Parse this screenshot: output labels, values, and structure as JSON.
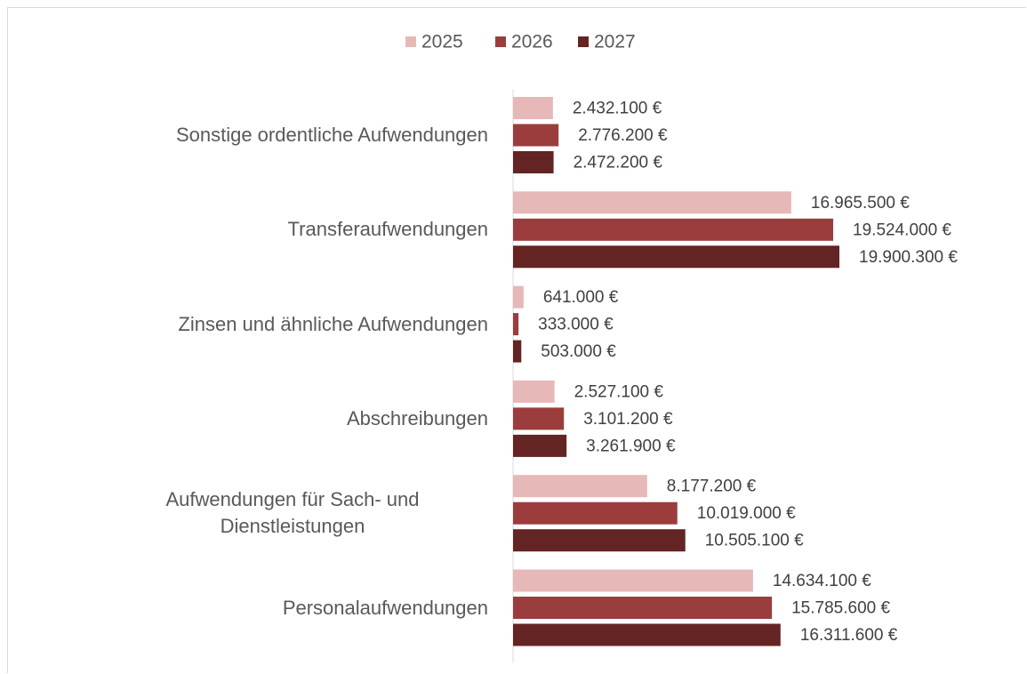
{
  "chart_data": {
    "type": "bar",
    "orientation": "horizontal",
    "categories": [
      "Sonstige ordentliche Aufwendungen",
      "Transferaufwendungen",
      "Zinsen und ähnliche Aufwendungen",
      "Abschreibungen",
      "Aufwendungen für Sach- und Dienstleistungen",
      "Personalaufwendungen"
    ],
    "series": [
      {
        "name": "2025",
        "color": "#e6b8b7",
        "values": [
          2432100,
          16965500,
          641000,
          2527100,
          8177200,
          14634100
        ],
        "value_labels": [
          "2.432.100 €",
          "16.965.500 €",
          "641.000 €",
          "2.527.100 €",
          "8.177.200 €",
          "14.634.100 €"
        ]
      },
      {
        "name": "2026",
        "color": "#9b3d3d",
        "values": [
          2776200,
          19524000,
          333000,
          3101200,
          10019000,
          15785600
        ],
        "value_labels": [
          "2.776.200 €",
          "19.524.000 €",
          "333.000 €",
          "3.101.200 €",
          "10.019.000 €",
          "15.785.600 €"
        ]
      },
      {
        "name": "2027",
        "color": "#632423",
        "values": [
          2472200,
          19900300,
          503000,
          3261900,
          10505100,
          16311600
        ],
        "value_labels": [
          "2.472.200 €",
          "19.900.300 €",
          "503.000 €",
          "3.261.900 €",
          "10.505.100 €",
          "16.311.600 €"
        ]
      }
    ],
    "xlim": [
      0,
      25000000
    ],
    "legend": "top"
  }
}
